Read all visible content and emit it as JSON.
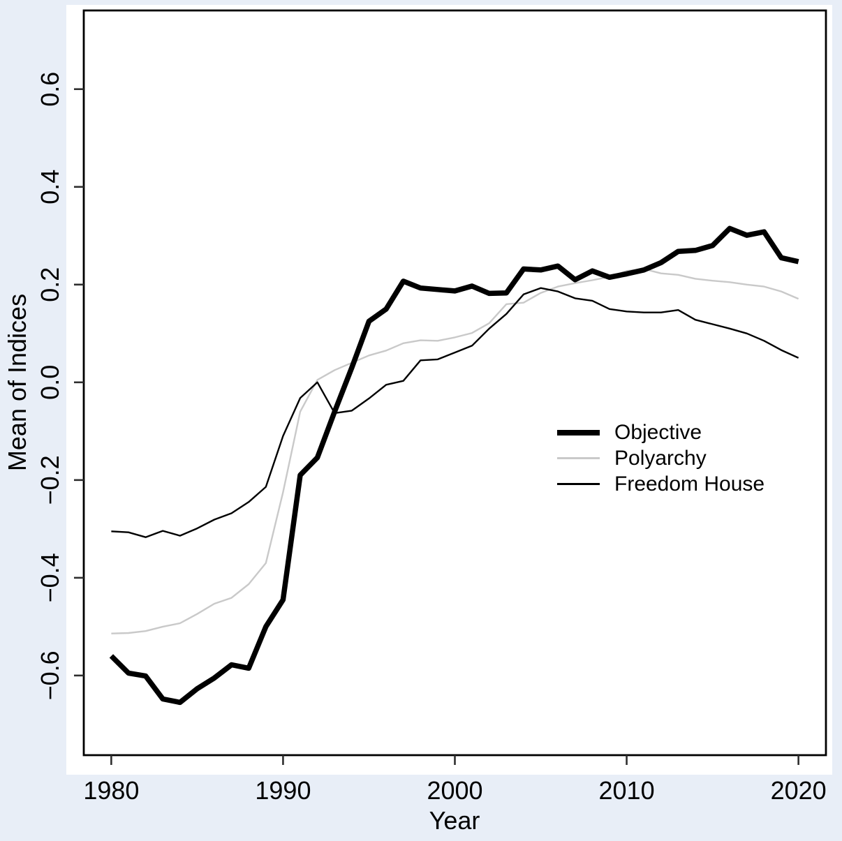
{
  "figure": {
    "background_color": "#e8eef7",
    "panel_color": "#ffffff",
    "box_color": "#000000",
    "tick_color": "#2e2e2e"
  },
  "chart_data": {
    "type": "line",
    "title": "",
    "xlabel": "Year",
    "ylabel": "Mean of Indices",
    "grid": false,
    "legend_position": "right-middle",
    "xlim": [
      1978.4,
      2021.6
    ],
    "ylim": [
      -0.763,
      0.761
    ],
    "x_ticks": [
      1980,
      1990,
      2000,
      2010,
      2020
    ],
    "y_ticks": [
      -0.6,
      -0.4,
      -0.2,
      0.0,
      0.2,
      0.4,
      0.6
    ],
    "x": [
      1980,
      1981,
      1982,
      1983,
      1984,
      1985,
      1986,
      1987,
      1988,
      1989,
      1990,
      1991,
      1992,
      1993,
      1994,
      1995,
      1996,
      1997,
      1998,
      1999,
      2000,
      2001,
      2002,
      2003,
      2004,
      2005,
      2006,
      2007,
      2008,
      2009,
      2010,
      2011,
      2012,
      2013,
      2014,
      2015,
      2016,
      2017,
      2018,
      2019,
      2020
    ],
    "series": [
      {
        "name": "Objective",
        "color": "#000000",
        "width": 7.5,
        "values": [
          -0.56,
          -0.595,
          -0.601,
          -0.648,
          -0.655,
          -0.627,
          -0.605,
          -0.578,
          -0.585,
          -0.5,
          -0.445,
          -0.19,
          -0.154,
          -0.06,
          0.03,
          0.125,
          0.15,
          0.207,
          0.193,
          0.19,
          0.187,
          0.197,
          0.182,
          0.183,
          0.232,
          0.23,
          0.238,
          0.21,
          0.228,
          0.215,
          0.222,
          0.23,
          0.245,
          0.268,
          0.27,
          0.28,
          0.315,
          0.301,
          0.308,
          0.255,
          0.247
        ]
      },
      {
        "name": "Polyarchy",
        "color": "#c9c9c9",
        "width": 2.4,
        "values": [
          -0.514,
          -0.513,
          -0.509,
          -0.5,
          -0.493,
          -0.474,
          -0.453,
          -0.441,
          -0.413,
          -0.37,
          -0.225,
          -0.06,
          0.005,
          0.025,
          0.04,
          0.055,
          0.065,
          0.08,
          0.086,
          0.085,
          0.092,
          0.101,
          0.121,
          0.16,
          0.163,
          0.183,
          0.196,
          0.203,
          0.209,
          0.216,
          0.228,
          0.232,
          0.223,
          0.22,
          0.212,
          0.208,
          0.205,
          0.2,
          0.196,
          0.186,
          0.171
        ]
      },
      {
        "name": "Freedom House",
        "color": "#000000",
        "width": 2.4,
        "values": [
          -0.305,
          -0.307,
          -0.317,
          -0.304,
          -0.314,
          -0.299,
          -0.281,
          -0.268,
          -0.245,
          -0.214,
          -0.11,
          -0.032,
          0.0,
          -0.063,
          -0.058,
          -0.033,
          -0.005,
          0.003,
          0.045,
          0.047,
          0.061,
          0.075,
          0.11,
          0.14,
          0.18,
          0.193,
          0.186,
          0.172,
          0.167,
          0.15,
          0.145,
          0.143,
          0.143,
          0.148,
          0.128,
          0.119,
          0.11,
          0.1,
          0.085,
          0.066,
          0.05
        ]
      }
    ]
  }
}
